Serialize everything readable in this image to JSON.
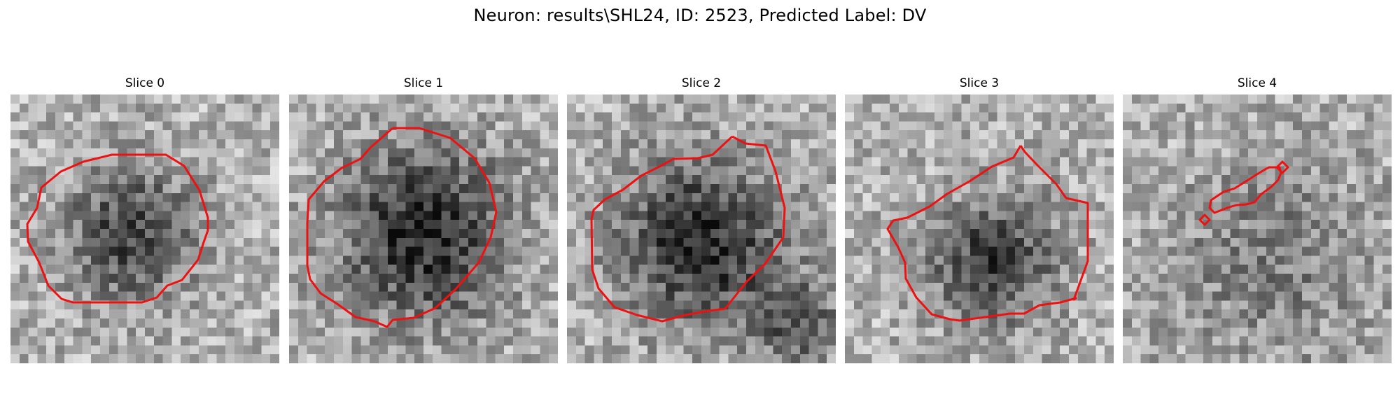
{
  "figure": {
    "title": "Neuron: results\\SHL24, ID: 2523, Predicted Label: DV"
  },
  "slices": [
    {
      "label": "Slice 0"
    },
    {
      "label": "Slice 1"
    },
    {
      "label": "Slice 2"
    },
    {
      "label": "Slice 3"
    },
    {
      "label": "Slice 4"
    }
  ],
  "colors": {
    "contour": "#ee1111",
    "background": "#ffffff"
  }
}
